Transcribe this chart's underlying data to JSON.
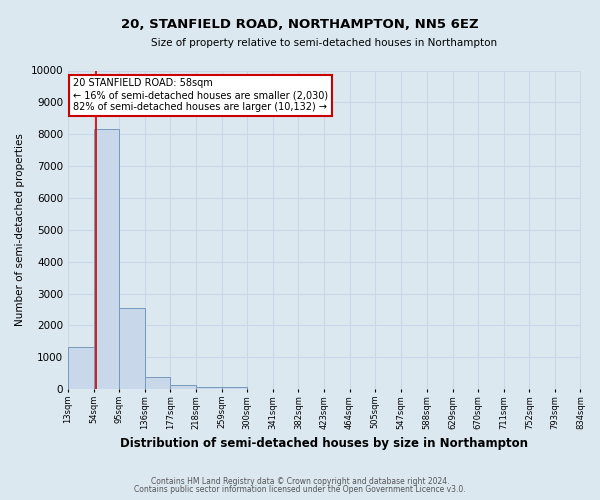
{
  "title": "20, STANFIELD ROAD, NORTHAMPTON, NN5 6EZ",
  "subtitle": "Size of property relative to semi-detached houses in Northampton",
  "xlabel": "Distribution of semi-detached houses by size in Northampton",
  "ylabel": "Number of semi-detached properties",
  "footnote1": "Contains HM Land Registry data © Crown copyright and database right 2024.",
  "footnote2": "Contains public sector information licensed under the Open Government Licence v3.0.",
  "annotation_line1": "20 STANFIELD ROAD: 58sqm",
  "annotation_line2": "← 16% of semi-detached houses are smaller (2,030)",
  "annotation_line3": "82% of semi-detached houses are larger (10,132) →",
  "property_size": 58,
  "bar_edges": [
    13,
    54,
    95,
    136,
    177,
    218,
    259,
    300,
    341,
    382,
    423,
    464,
    505,
    547,
    588,
    629,
    670,
    711,
    752,
    793,
    834
  ],
  "bar_heights": [
    1320,
    8150,
    2550,
    380,
    125,
    85,
    55,
    0,
    0,
    0,
    0,
    0,
    0,
    0,
    0,
    0,
    0,
    0,
    0,
    0
  ],
  "bar_color": "#c8d8ea",
  "bar_edge_color": "#7799bb",
  "vline_color": "#cc0000",
  "vline_x": 58,
  "ylim": [
    0,
    10000
  ],
  "yticks": [
    0,
    1000,
    2000,
    3000,
    4000,
    5000,
    6000,
    7000,
    8000,
    9000,
    10000
  ],
  "annotation_box_color": "#ffffff",
  "annotation_box_edge": "#cc0000",
  "grid_color": "#c8d8ea",
  "background_color": "#dce8f0"
}
